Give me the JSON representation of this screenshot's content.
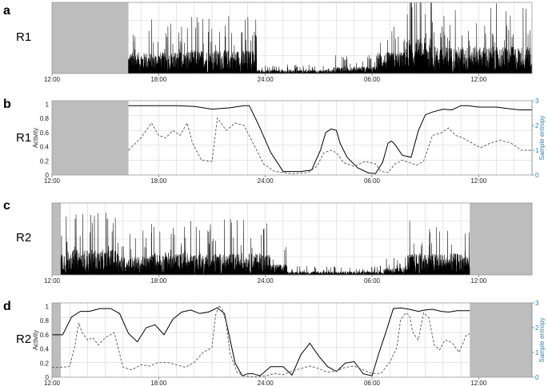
{
  "chart_data": [
    {
      "type": "line",
      "panel": "a",
      "row_label": "R1",
      "x_tick_labels": [
        "12:00",
        "18:00",
        "24:00",
        "06:00",
        "12:00"
      ],
      "xlim": [
        0,
        27
      ],
      "missing_intervals": [
        [
          0,
          4.3
        ]
      ],
      "grid": true,
      "series": [
        {
          "color": "#000000",
          "style": "solid",
          "segments": [
            [
              4.3,
              0.3
            ],
            [
              7.5,
              0.33
            ],
            [
              11.5,
              0.05
            ],
            [
              15.8,
              0.1
            ],
            [
              18.3,
              0.3
            ],
            [
              19.8,
              0.5
            ],
            [
              21.4,
              0.38
            ],
            [
              23.5,
              0.38
            ],
            [
              27,
              0.35
            ]
          ]
        }
      ]
    },
    {
      "type": "line",
      "panel": "b",
      "row_label": "R1",
      "ylabel": "Activity",
      "y2label": "Sample entropy",
      "x_tick_labels": [
        "12:00",
        "18:00",
        "24:00",
        "06:00",
        "12:00"
      ],
      "y_ticks": [
        "0",
        "0.2",
        "0.4",
        "0.6",
        "0.8",
        "1"
      ],
      "y2_ticks": [
        "0",
        "1",
        "2",
        "3"
      ],
      "xlim": [
        0,
        27
      ],
      "ylim": [
        0,
        1.05
      ],
      "y2lim": [
        0,
        3
      ],
      "missing_intervals": [
        [
          0,
          4.3
        ]
      ],
      "grid": true,
      "series": [
        {
          "style": "solid",
          "color": "#000000",
          "x": [
            4.3,
            6,
            7,
            8,
            9,
            10,
            10.8,
            11.1,
            11.6,
            12.3,
            13,
            14,
            14.6,
            15.1,
            15.4,
            15.7,
            16.0,
            16.2,
            16.6,
            17.2,
            17.8,
            18.2,
            18.6,
            18.9,
            19.1,
            19.3,
            19.7,
            20.2,
            20.6,
            21.0,
            21.4,
            22,
            22.5,
            23,
            23.4,
            24,
            24.6,
            25,
            25.6,
            26.3,
            27
          ],
          "y": [
            0.98,
            0.98,
            0.98,
            0.97,
            0.93,
            0.95,
            0.98,
            0.98,
            0.72,
            0.32,
            0.05,
            0.05,
            0.07,
            0.35,
            0.6,
            0.65,
            0.63,
            0.45,
            0.25,
            0.1,
            0.03,
            0.02,
            0.18,
            0.45,
            0.48,
            0.43,
            0.28,
            0.25,
            0.62,
            0.85,
            0.89,
            0.93,
            0.92,
            0.98,
            0.98,
            0.96,
            0.96,
            0.96,
            0.94,
            0.92,
            0.92
          ]
        },
        {
          "style": "dashed",
          "color": "#555555",
          "x": [
            4.3,
            5,
            5.6,
            6,
            6.4,
            6.8,
            7.2,
            7.6,
            7.9,
            8.4,
            9,
            9.3,
            9.8,
            10.3,
            10.8,
            11.3,
            11.9,
            12.5,
            13.5,
            14.4,
            14.9,
            15.3,
            15.7,
            16.0,
            16.4,
            17.0,
            17.6,
            18.2,
            18.5,
            18.9,
            19.3,
            19.7,
            20.1,
            20.5,
            20.9,
            21.4,
            21.9,
            22.3,
            22.7,
            23.1,
            23.6,
            24.1,
            24.7,
            25.2,
            25.8,
            26.4,
            27
          ],
          "y": [
            1.0,
            1.5,
            2.1,
            1.6,
            1.5,
            1.8,
            1.6,
            2.1,
            1.3,
            0.6,
            0.55,
            2.3,
            1.8,
            2.1,
            2.0,
            1.3,
            0.45,
            0.15,
            0.05,
            0.1,
            0.35,
            0.9,
            1.0,
            0.9,
            0.5,
            0.35,
            0.55,
            0.45,
            0.15,
            0.1,
            0.45,
            0.6,
            0.5,
            0.4,
            0.55,
            1.6,
            1.7,
            1.9,
            1.6,
            1.5,
            1.3,
            1.1,
            1.3,
            1.4,
            1.3,
            1.0,
            1.0
          ]
        }
      ]
    },
    {
      "type": "line",
      "panel": "c",
      "row_label": "R2",
      "x_tick_labels": [
        "12:00",
        "18:00",
        "24:00",
        "06:00",
        "12:00"
      ],
      "xlim": [
        0,
        27
      ],
      "missing_intervals": [
        [
          0,
          0.5
        ],
        [
          23.5,
          27
        ]
      ],
      "grid": true,
      "series": [
        {
          "color": "#000000",
          "style": "solid",
          "segments": [
            [
              0.5,
              0.35
            ],
            [
              3.8,
              0.25
            ],
            [
              5.5,
              0.3
            ],
            [
              9.5,
              0.3
            ],
            [
              12.3,
              0.15
            ],
            [
              13.2,
              0.05
            ],
            [
              18.7,
              0.1
            ],
            [
              20,
              0.3
            ],
            [
              23.5,
              0.45
            ]
          ]
        }
      ]
    },
    {
      "type": "line",
      "panel": "d",
      "row_label": "R2",
      "ylabel": "Activity",
      "y2label": "Sample entropy",
      "x_tick_labels": [
        "12:00",
        "18:00",
        "24:00",
        "06:00",
        "12:00"
      ],
      "y_ticks": [
        "0",
        "0.2",
        "0.4",
        "0.6",
        "0.8",
        "1"
      ],
      "y2_ticks": [
        "0",
        "1",
        "2",
        "3"
      ],
      "xlim": [
        0,
        27
      ],
      "ylim": [
        0,
        1.05
      ],
      "y2lim": [
        0,
        3
      ],
      "missing_intervals": [
        [
          0,
          0.5
        ],
        [
          23.5,
          27
        ]
      ],
      "grid": true,
      "series": [
        {
          "style": "solid",
          "color": "#000000",
          "x": [
            0,
            0.6,
            1.1,
            1.6,
            2.1,
            2.7,
            3.3,
            3.8,
            4.3,
            4.8,
            5.3,
            5.8,
            6.3,
            6.8,
            7.3,
            7.8,
            8.3,
            8.8,
            9.3,
            9.7,
            10.3,
            10.7,
            11.0,
            11.3,
            11.7,
            12.3,
            13.0,
            13.5,
            14.0,
            14.5,
            15.0,
            15.5,
            16.0,
            16.5,
            17.0,
            17.5,
            18.0,
            18.4,
            18.8,
            19.2,
            19.6,
            20.1,
            20.6,
            21.0,
            21.4,
            21.9,
            22.3,
            22.8,
            23.2,
            23.5
          ],
          "y": [
            0.6,
            0.6,
            0.85,
            0.93,
            0.93,
            0.97,
            0.97,
            0.9,
            0.62,
            0.5,
            0.7,
            0.74,
            0.6,
            0.82,
            0.92,
            0.95,
            0.9,
            0.92,
            0.98,
            0.9,
            0.2,
            0.02,
            0.05,
            0.05,
            0.02,
            0.15,
            0.15,
            0.03,
            0.32,
            0.48,
            0.3,
            0.15,
            0.08,
            0.2,
            0.22,
            0.05,
            0.02,
            0.35,
            0.65,
            0.97,
            0.98,
            0.96,
            0.93,
            0.95,
            0.96,
            0.93,
            0.92,
            0.94,
            0.94,
            0.94
          ]
        },
        {
          "style": "dashed",
          "color": "#555555",
          "x": [
            0,
            0.6,
            1.0,
            1.3,
            1.5,
            1.7,
            2.0,
            2.3,
            2.6,
            3.0,
            3.5,
            4.0,
            4.5,
            5.0,
            5.5,
            6.0,
            6.5,
            7.0,
            7.5,
            8.0,
            8.5,
            9.0,
            9.2,
            9.4,
            9.6,
            9.8,
            10.0,
            10.4,
            10.8,
            11.3,
            12.0,
            12.5,
            13.0,
            13.5,
            14.0,
            14.5,
            15.0,
            15.5,
            16.0,
            16.5,
            17.0,
            17.5,
            18.0,
            18.5,
            19.0,
            19.4,
            19.6,
            19.9,
            20.1,
            20.3,
            20.6,
            20.9,
            21.2,
            21.5,
            21.8,
            22.1,
            22.5,
            22.9,
            23.3,
            23.5
          ],
          "y": [
            0.4,
            0.4,
            0.45,
            1.3,
            2.2,
            1.8,
            1.5,
            1.6,
            1.3,
            1.6,
            1.8,
            0.4,
            0.3,
            0.5,
            0.45,
            0.6,
            0.6,
            0.5,
            0.4,
            0.6,
            1.0,
            1.2,
            2.5,
            2.9,
            2.7,
            2.2,
            1.0,
            0.2,
            0.05,
            0.02,
            0.05,
            0.15,
            0.1,
            0.25,
            0.35,
            0.45,
            0.35,
            0.2,
            0.25,
            0.4,
            0.45,
            0.3,
            0.15,
            0.15,
            0.6,
            1.2,
            2.3,
            2.6,
            2.5,
            1.8,
            1.5,
            2.6,
            2.4,
            1.3,
            1.1,
            1.5,
            1.4,
            1.0,
            1.7,
            1.75
          ]
        }
      ]
    }
  ]
}
